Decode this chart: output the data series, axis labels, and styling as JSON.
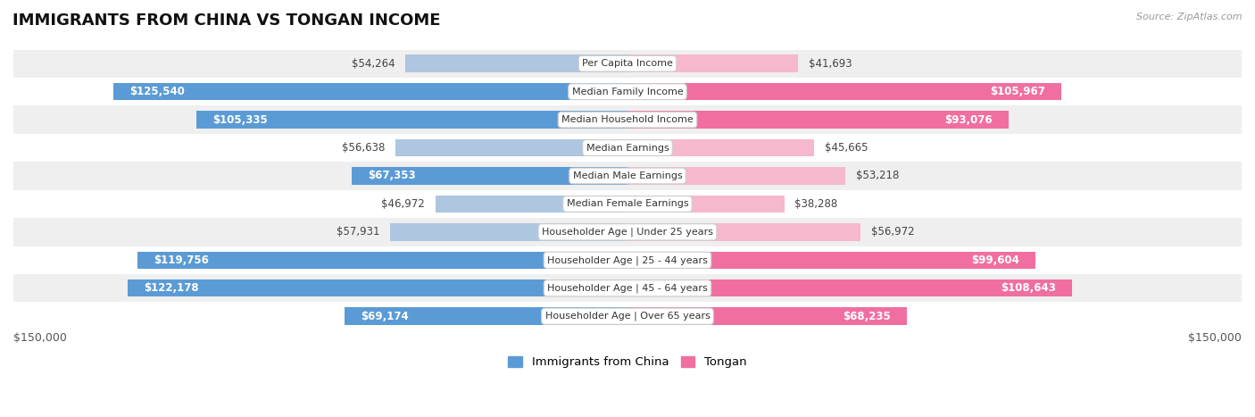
{
  "title": "IMMIGRANTS FROM CHINA VS TONGAN INCOME",
  "source": "Source: ZipAtlas.com",
  "categories": [
    "Per Capita Income",
    "Median Family Income",
    "Median Household Income",
    "Median Earnings",
    "Median Male Earnings",
    "Median Female Earnings",
    "Householder Age | Under 25 years",
    "Householder Age | 25 - 44 years",
    "Householder Age | 45 - 64 years",
    "Householder Age | Over 65 years"
  ],
  "china_values": [
    54264,
    125540,
    105335,
    56638,
    67353,
    46972,
    57931,
    119756,
    122178,
    69174
  ],
  "tongan_values": [
    41693,
    105967,
    93076,
    45665,
    53218,
    38288,
    56972,
    99604,
    108643,
    68235
  ],
  "china_labels": [
    "$54,264",
    "$125,540",
    "$105,335",
    "$56,638",
    "$67,353",
    "$46,972",
    "$57,931",
    "$119,756",
    "$122,178",
    "$69,174"
  ],
  "tongan_labels": [
    "$41,693",
    "$105,967",
    "$93,076",
    "$45,665",
    "$53,218",
    "$38,288",
    "$56,972",
    "$99,604",
    "$108,643",
    "$68,235"
  ],
  "china_color_light": "#aec6e0",
  "china_color_dark": "#5b9bd5",
  "tongan_color_light": "#f5b8cc",
  "tongan_color_dark": "#f06fa0",
  "max_value": 150000,
  "bar_height": 0.62,
  "background_color": "#ffffff",
  "row_bg_odd": "#efefef",
  "row_bg_even": "#ffffff",
  "xlabel_left": "$150,000",
  "xlabel_right": "$150,000",
  "legend_china": "Immigrants from China",
  "legend_tongan": "Tongan",
  "inside_label_threshold": 65000
}
